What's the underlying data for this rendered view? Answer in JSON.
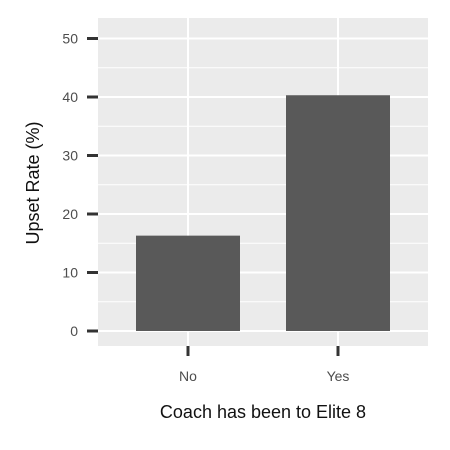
{
  "chart_data": {
    "type": "bar",
    "categories": [
      "No",
      "Yes"
    ],
    "values": [
      16.3,
      40.3
    ],
    "title": "",
    "xlabel": "Coach has been to Elite 8",
    "ylabel": "Upset Rate (%)",
    "ylim": [
      0,
      51.5
    ],
    "yticks": [
      0,
      10,
      20,
      30,
      40,
      50
    ],
    "grid": true,
    "legend": "none"
  },
  "colors": {
    "panel_background": "#ebebeb",
    "gridline": "#ffffff",
    "bar_fill": "#595959",
    "tick_mark": "#333333",
    "tick_label": "#4d4d4d",
    "axis_title": "#111111"
  }
}
